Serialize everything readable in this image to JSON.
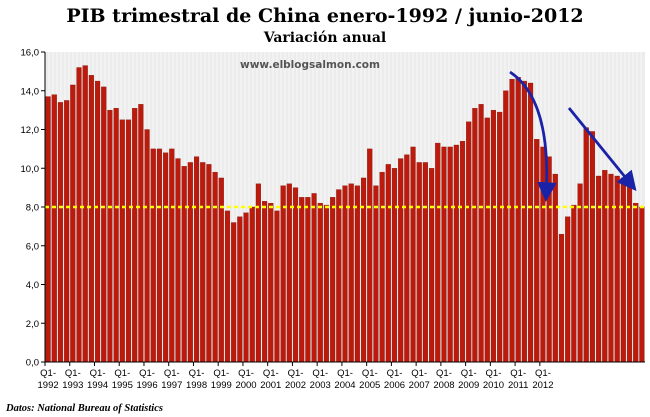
{
  "chart_data": {
    "type": "bar",
    "title": "PIB trimestral de China enero-1992 / junio-2012",
    "subtitle": "Variación anual",
    "watermark": "www.elblogsalmon.com",
    "source": "Datos: National Bureau of Statistics",
    "ylim": [
      0,
      16
    ],
    "yticks": [
      "0,0",
      "2,0",
      "4,0",
      "6,0",
      "8,0",
      "10,0",
      "12,0",
      "14,0",
      "16,0"
    ],
    "xticks": [
      {
        "top": "Q1-",
        "bottom": "1992"
      },
      {
        "top": "Q1-",
        "bottom": "1993"
      },
      {
        "top": "Q1-",
        "bottom": "1994"
      },
      {
        "top": "Q1-",
        "bottom": "1995"
      },
      {
        "top": "Q1-",
        "bottom": "1996"
      },
      {
        "top": "Q1-",
        "bottom": "1997"
      },
      {
        "top": "Q1-",
        "bottom": "1998"
      },
      {
        "top": "Q1-",
        "bottom": "1999"
      },
      {
        "top": "Q1-",
        "bottom": "2000"
      },
      {
        "top": "Q1-",
        "bottom": "2001"
      },
      {
        "top": "Q1-",
        "bottom": "2002"
      },
      {
        "top": "Q1-",
        "bottom": "2003"
      },
      {
        "top": "Q1-",
        "bottom": "2004"
      },
      {
        "top": "Q1-",
        "bottom": "2005"
      },
      {
        "top": "Q1-",
        "bottom": "2006"
      },
      {
        "top": "Q1-",
        "bottom": "2007"
      },
      {
        "top": "Q1-",
        "bottom": "2008"
      },
      {
        "top": "Q1-",
        "bottom": "2009"
      },
      {
        "top": "Q1-",
        "bottom": "2010"
      },
      {
        "top": "Q1-",
        "bottom": "2011"
      },
      {
        "top": "Q1-",
        "bottom": "2012"
      }
    ],
    "values": [
      13.7,
      13.8,
      13.4,
      13.5,
      14.3,
      15.2,
      15.3,
      14.8,
      14.5,
      14.2,
      13.0,
      13.1,
      12.5,
      12.5,
      13.1,
      13.3,
      12.0,
      11.0,
      11.0,
      10.8,
      11.0,
      10.5,
      10.1,
      10.3,
      10.6,
      10.3,
      10.2,
      9.8,
      9.5,
      7.8,
      7.2,
      7.5,
      7.7,
      8.0,
      9.2,
      8.3,
      8.2,
      7.8,
      9.1,
      9.2,
      9.0,
      8.5,
      8.5,
      8.7,
      8.2,
      8.1,
      8.5,
      8.9,
      9.1,
      9.2,
      9.1,
      9.5,
      11.0,
      9.1,
      9.8,
      10.2,
      10.0,
      10.5,
      10.7,
      11.1,
      10.3,
      10.3,
      10.0,
      11.3,
      11.1,
      11.1,
      11.2,
      11.4,
      12.4,
      13.1,
      13.3,
      12.6,
      13.0,
      12.9,
      14.0,
      14.6,
      14.7,
      14.5,
      14.4,
      11.5,
      11.1,
      10.6,
      9.7,
      6.6,
      7.5,
      8.1,
      9.2,
      12.1,
      11.9,
      9.6,
      9.9,
      9.7,
      9.6,
      9.5,
      9.3,
      8.2,
      8.0
    ],
    "reference_line": {
      "value": 8.0,
      "color": "#ffff00"
    },
    "bar_color": "#bb1a0c",
    "plot_background": "#ececec",
    "arrow_color": "#1a23a8",
    "grid": true
  }
}
